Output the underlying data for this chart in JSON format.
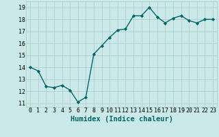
{
  "xlabel": "Humidex (Indice chaleur)",
  "ylabel": "",
  "x": [
    0,
    1,
    2,
    3,
    4,
    5,
    6,
    7,
    8,
    9,
    10,
    11,
    12,
    13,
    14,
    15,
    16,
    17,
    18,
    19,
    20,
    21,
    22,
    23
  ],
  "y": [
    14.0,
    13.7,
    12.4,
    12.3,
    12.5,
    12.1,
    11.1,
    11.5,
    15.1,
    15.8,
    16.5,
    17.1,
    17.2,
    18.3,
    18.3,
    19.0,
    18.2,
    17.7,
    18.1,
    18.3,
    17.9,
    17.7,
    18.0,
    18.0
  ],
  "line_color": "#006666",
  "marker": "D",
  "marker_size": 2.2,
  "line_width": 1.0,
  "bg_color": "#cce9e9",
  "grid_color": "#aacccc",
  "ylim": [
    10.7,
    19.5
  ],
  "xlim": [
    -0.5,
    23.5
  ],
  "yticks": [
    11,
    12,
    13,
    14,
    15,
    16,
    17,
    18,
    19
  ],
  "xticks": [
    0,
    1,
    2,
    3,
    4,
    5,
    6,
    7,
    8,
    9,
    10,
    11,
    12,
    13,
    14,
    15,
    16,
    17,
    18,
    19,
    20,
    21,
    22,
    23
  ],
  "tick_fontsize": 6.0,
  "xlabel_fontsize": 7.5,
  "title_fontsize": 7
}
